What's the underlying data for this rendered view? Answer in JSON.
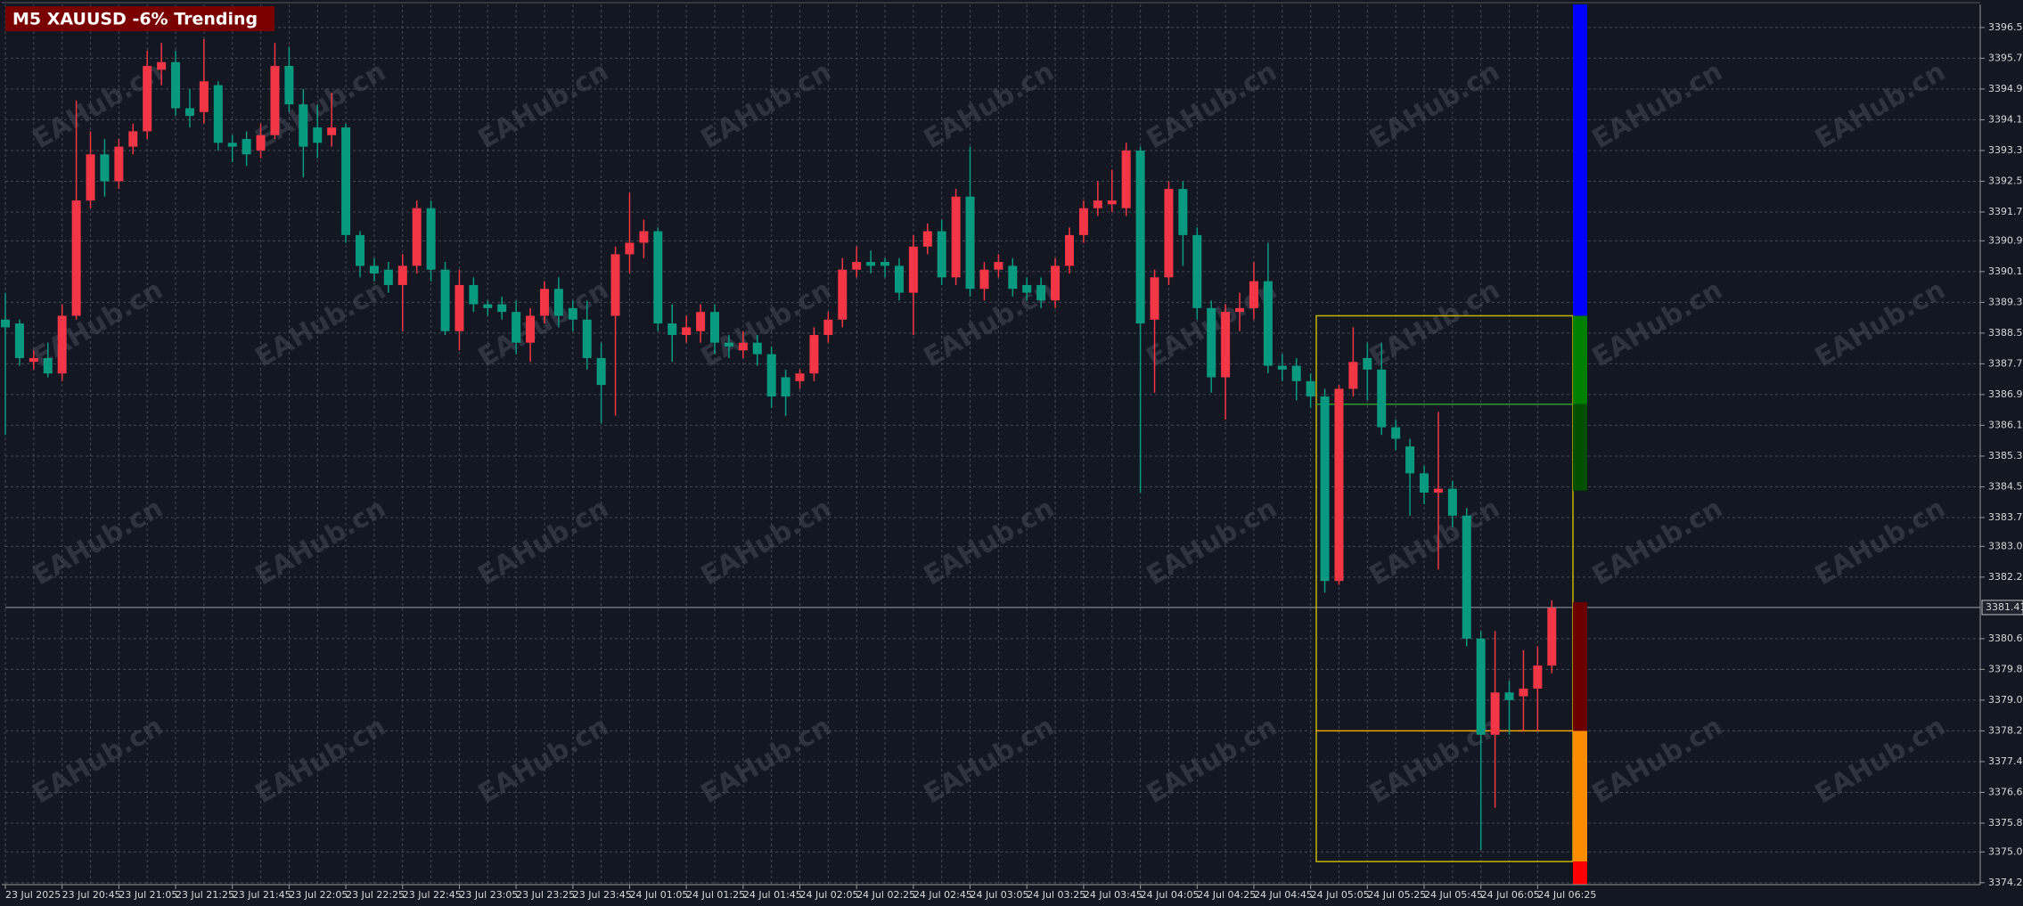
{
  "chart_data": {
    "type": "candlestick",
    "title": "M5 XAUUSD -6% Trending",
    "watermark": "EAHub.cn",
    "up_color": "#f23645",
    "down_color": "#089981",
    "grid": true,
    "ylim": [
      3374.2,
      3397.1
    ],
    "yticks": [
      {
        "value": 3396.5,
        "label": "3396.50"
      },
      {
        "value": 3395.7,
        "label": "3395.70"
      },
      {
        "value": 3394.9,
        "label": "3394.90"
      },
      {
        "value": 3394.1,
        "label": "3394.10"
      },
      {
        "value": 3393.3,
        "label": "3393.30"
      },
      {
        "value": 3392.5,
        "label": "3392.50"
      },
      {
        "value": 3391.7,
        "label": "3391.70"
      },
      3390.95,
      3390.15,
      3389.35,
      3388.55,
      3387.75,
      3386.95,
      3386.15,
      3385.35,
      3384.55,
      3383.75,
      {
        "value": 3383.0,
        "label": "3383.00"
      },
      {
        "value": 3382.2,
        "label": "3382.20"
      },
      {
        "value": 3380.6,
        "label": "3380.60"
      },
      {
        "value": 3379.8,
        "label": "3379.80"
      },
      {
        "value": 3379.0,
        "label": "3379.00"
      },
      {
        "value": 3378.2,
        "label": "3378.20"
      },
      {
        "value": 3377.4,
        "label": "3377.40"
      },
      {
        "value": 3376.6,
        "label": "3376.60"
      },
      {
        "value": 3375.8,
        "label": "3375.80"
      },
      3375.05,
      3374.25
    ],
    "current_price": 3381.41,
    "categories": [
      "23 Jul 2025",
      null,
      null,
      null,
      "23 Jul 20:45",
      null,
      null,
      null,
      "23 Jul 21:05",
      null,
      null,
      null,
      "23 Jul 21:25",
      null,
      null,
      null,
      "23 Jul 21:45",
      null,
      null,
      null,
      "23 Jul 22:05",
      null,
      null,
      null,
      "23 Jul 22:25",
      null,
      null,
      null,
      "23 Jul 22:45",
      null,
      null,
      null,
      "23 Jul 23:05",
      null,
      null,
      null,
      "23 Jul 23:25",
      null,
      null,
      null,
      "23 Jul 23:45",
      null,
      null,
      null,
      "24 Jul 01:05",
      null,
      null,
      null,
      "24 Jul 01:25",
      null,
      null,
      null,
      "24 Jul 01:45",
      null,
      null,
      null,
      "24 Jul 02:05",
      null,
      null,
      null,
      "24 Jul 02:25",
      null,
      null,
      null,
      "24 Jul 02:45",
      null,
      null,
      null,
      "24 Jul 03:05",
      null,
      null,
      null,
      "24 Jul 03:25",
      null,
      null,
      null,
      "24 Jul 03:45",
      null,
      null,
      null,
      "24 Jul 04:05",
      null,
      null,
      null,
      "24 Jul 04:25",
      null,
      null,
      null,
      "24 Jul 04:45",
      null,
      null,
      null,
      "24 Jul 05:05",
      null,
      null,
      null,
      "24 Jul 05:25",
      null,
      null,
      null,
      "24 Jul 05:45",
      null,
      null,
      null,
      "24 Jul 06:05",
      null,
      null,
      null,
      "24 Jul 06:25",
      null
    ],
    "open": [
      3388.9,
      3388.8,
      3387.8,
      3387.9,
      3387.5,
      3389.0,
      3392.0,
      3393.2,
      3392.5,
      3393.4,
      3393.8,
      3395.4,
      3395.6,
      3394.4,
      3394.3,
      3395.0,
      3393.5,
      3393.6,
      3393.3,
      3393.7,
      3395.5,
      3394.5,
      3393.9,
      3393.7,
      3393.9,
      3391.1,
      3390.3,
      3390.2,
      3389.8,
      3390.3,
      3391.8,
      3390.2,
      3388.6,
      3389.8,
      3389.3,
      3389.3,
      3389.1,
      3388.3,
      3389.0,
      3389.7,
      3389.2,
      3388.9,
      3387.9,
      3389.0,
      3390.6,
      3390.9,
      3391.2,
      3388.8,
      3388.5,
      3388.6,
      3389.1,
      3388.3,
      3388.1,
      3388.3,
      3388.0,
      3387.4,
      3387.3,
      3387.5,
      3388.5,
      3388.9,
      3390.2,
      3390.4,
      3390.4,
      3390.3,
      3389.6,
      3390.8,
      3391.2,
      3390.0,
      3392.1,
      3389.7,
      3390.2,
      3390.3,
      3389.8,
      3389.8,
      3389.4,
      3390.3,
      3391.1,
      3391.8,
      3391.9,
      3391.8,
      3393.3,
      3388.9,
      3390.0,
      3392.3,
      3391.1,
      3389.2,
      3387.4,
      3389.1,
      3389.2,
      3389.9,
      3387.7,
      3387.7,
      3387.3,
      3386.9,
      3382.1,
      3387.1,
      3387.9,
      3387.6,
      3386.1,
      3385.6,
      3384.9,
      3384.4,
      3384.5,
      3383.8,
      3380.6,
      3378.1,
      3379.2,
      3379.1,
      3379.3,
      3379.9
    ],
    "high": [
      3389.6,
      3388.9,
      3388.1,
      3388.3,
      3389.3,
      3394.6,
      3393.8,
      3393.6,
      3393.6,
      3394.0,
      3395.9,
      3396.1,
      3395.9,
      3394.9,
      3396.2,
      3395.1,
      3393.7,
      3393.8,
      3394.0,
      3396.1,
      3396.0,
      3394.9,
      3394.5,
      3394.8,
      3394.0,
      3391.2,
      3390.5,
      3390.4,
      3390.6,
      3392.0,
      3392.0,
      3390.4,
      3390.2,
      3390.0,
      3389.4,
      3389.5,
      3389.4,
      3389.2,
      3389.9,
      3390.0,
      3389.4,
      3389.4,
      3388.3,
      3390.8,
      3392.2,
      3391.5,
      3391.3,
      3389.3,
      3389.0,
      3389.3,
      3389.3,
      3388.5,
      3388.6,
      3388.5,
      3388.2,
      3387.6,
      3387.6,
      3388.7,
      3389.1,
      3390.5,
      3390.8,
      3390.7,
      3390.5,
      3390.5,
      3391.1,
      3391.4,
      3391.5,
      3392.3,
      3393.4,
      3390.4,
      3390.6,
      3390.5,
      3390.0,
      3390.0,
      3390.5,
      3391.3,
      3392.0,
      3392.5,
      3392.8,
      3393.5,
      3393.4,
      3390.2,
      3392.5,
      3392.5,
      3391.3,
      3389.4,
      3389.3,
      3389.6,
      3390.4,
      3390.9,
      3388.0,
      3387.9,
      3387.5,
      3387.1,
      3387.2,
      3388.7,
      3388.3,
      3388.3,
      3386.3,
      3385.8,
      3385.1,
      3386.5,
      3384.7,
      3384.0,
      3380.8,
      3380.8,
      3379.5,
      3380.3,
      3380.4,
      3381.6
    ],
    "low": [
      3385.9,
      3387.7,
      3387.6,
      3387.4,
      3387.3,
      3388.9,
      3391.8,
      3392.1,
      3392.3,
      3393.2,
      3393.6,
      3395.0,
      3394.2,
      3393.9,
      3394.0,
      3393.3,
      3393.0,
      3392.9,
      3393.1,
      3393.6,
      3394.3,
      3392.6,
      3393.1,
      3393.4,
      3390.9,
      3390.0,
      3389.9,
      3389.6,
      3388.6,
      3390.1,
      3389.9,
      3388.5,
      3388.1,
      3389.1,
      3389.0,
      3388.9,
      3388.0,
      3387.8,
      3388.8,
      3388.7,
      3388.6,
      3387.6,
      3386.2,
      3386.4,
      3390.1,
      3390.5,
      3388.6,
      3387.8,
      3388.3,
      3388.3,
      3388.0,
      3387.9,
      3387.9,
      3387.7,
      3386.6,
      3386.4,
      3387.1,
      3387.3,
      3388.3,
      3388.7,
      3390.0,
      3390.1,
      3390.0,
      3389.4,
      3388.5,
      3390.6,
      3389.8,
      3389.8,
      3389.5,
      3389.4,
      3390.0,
      3389.5,
      3389.4,
      3389.2,
      3389.2,
      3390.1,
      3390.9,
      3391.6,
      3391.7,
      3391.6,
      3384.4,
      3387.0,
      3389.8,
      3390.3,
      3388.9,
      3387.0,
      3386.3,
      3388.6,
      3388.9,
      3387.5,
      3387.3,
      3386.8,
      3386.6,
      3381.8,
      3382.0,
      3386.9,
      3386.8,
      3385.9,
      3385.5,
      3383.8,
      3384.1,
      3382.4,
      3383.5,
      3380.4,
      3375.1,
      3376.2,
      3378.1,
      3378.2,
      3378.2,
      3379.7
    ],
    "close": [
      3388.7,
      3387.9,
      3387.9,
      3387.5,
      3389.0,
      3392.0,
      3393.2,
      3392.5,
      3393.4,
      3393.8,
      3395.5,
      3395.6,
      3394.4,
      3394.2,
      3395.1,
      3393.5,
      3393.4,
      3393.2,
      3393.7,
      3395.5,
      3394.5,
      3393.4,
      3393.5,
      3393.9,
      3391.1,
      3390.3,
      3390.1,
      3389.8,
      3390.3,
      3391.8,
      3390.2,
      3388.6,
      3389.8,
      3389.3,
      3389.2,
      3389.1,
      3388.3,
      3389.0,
      3389.7,
      3389.0,
      3388.9,
      3387.9,
      3387.2,
      3390.6,
      3390.9,
      3391.2,
      3388.8,
      3388.5,
      3388.7,
      3389.1,
      3388.3,
      3388.2,
      3388.3,
      3388.0,
      3386.9,
      3386.9,
      3387.5,
      3388.5,
      3388.9,
      3390.2,
      3390.4,
      3390.3,
      3390.3,
      3389.6,
      3390.8,
      3391.2,
      3390.0,
      3392.1,
      3389.7,
      3390.2,
      3390.4,
      3389.7,
      3389.6,
      3389.4,
      3390.3,
      3391.1,
      3391.8,
      3392.0,
      3392.0,
      3393.3,
      3388.8,
      3390.0,
      3392.3,
      3391.1,
      3389.2,
      3387.4,
      3389.1,
      3389.2,
      3389.9,
      3387.7,
      3387.6,
      3387.3,
      3386.9,
      3382.1,
      3387.1,
      3387.8,
      3387.6,
      3386.1,
      3385.8,
      3384.9,
      3384.4,
      3384.5,
      3383.8,
      3380.6,
      3378.1,
      3379.2,
      3379.0,
      3379.3,
      3379.9,
      3381.4
    ],
    "box": {
      "color": "#c8b400",
      "top": 3389.0,
      "bottom": 3374.8
    },
    "box_lines": [
      {
        "value": 3386.7,
        "color": "#2e9a2e"
      },
      {
        "value": 3378.2,
        "color": "#ffa500"
      }
    ],
    "zones": [
      {
        "color": "#0000ff",
        "from": 3389.0,
        "to": 3397.1
      },
      {
        "color": "#008000",
        "from": 3386.7,
        "to": 3389.0
      },
      {
        "color": "#005000",
        "from": 3384.45,
        "to": 3386.7
      },
      {
        "color": "#6b0000",
        "from": 3378.2,
        "to": 3381.55
      },
      {
        "color": "#ff8c00",
        "from": 3374.8,
        "to": 3378.2
      },
      {
        "color": "#ff0000",
        "from": 3374.2,
        "to": 3374.8
      }
    ]
  }
}
